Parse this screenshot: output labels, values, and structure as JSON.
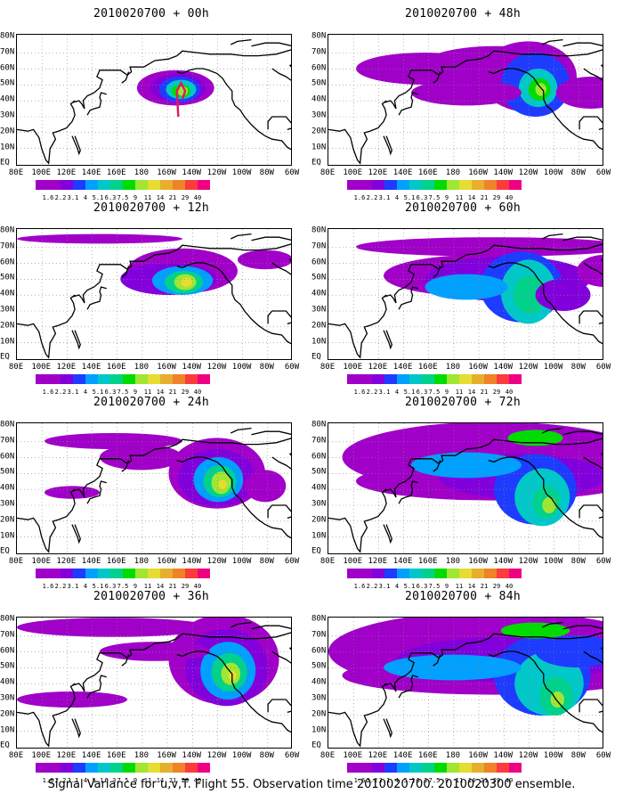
{
  "figure": {
    "caption": "Signal Variance for u,v,T. Flight 55. Observation time 2010020700. 2010020300 ensemble."
  },
  "map": {
    "lat_labels": [
      "80N",
      "70N",
      "60N",
      "50N",
      "40N",
      "30N",
      "20N",
      "10N",
      "EQ"
    ],
    "lon_labels": [
      "80E",
      "100E",
      "120E",
      "140E",
      "160E",
      "180",
      "160W",
      "140W",
      "120W",
      "100W",
      "80W",
      "60W"
    ],
    "coast_color": "#000000",
    "grid": "dotted"
  },
  "colorbar": {
    "levels": [
      "1.6",
      "2.2",
      "3.1",
      "4",
      "5.1",
      "6.3",
      "7.5",
      "9",
      "11",
      "14",
      "21",
      "29",
      "40"
    ],
    "colors": [
      "#a000c8",
      "#8200dc",
      "#1e3cff",
      "#00a0ff",
      "#00c8c8",
      "#00d28c",
      "#00dc00",
      "#a0e632",
      "#e6dc32",
      "#e6af2d",
      "#f08228",
      "#fa3c3c",
      "#f00082"
    ]
  },
  "panels": [
    {
      "title": "2010020700 + 00h"
    },
    {
      "title": "2010020700 + 48h"
    },
    {
      "title": "2010020700 + 12h"
    },
    {
      "title": "2010020700 + 60h"
    },
    {
      "title": "2010020700 + 24h"
    },
    {
      "title": "2010020700 + 72h"
    },
    {
      "title": "2010020700 + 36h"
    },
    {
      "title": "2010020700 + 84h"
    }
  ]
}
